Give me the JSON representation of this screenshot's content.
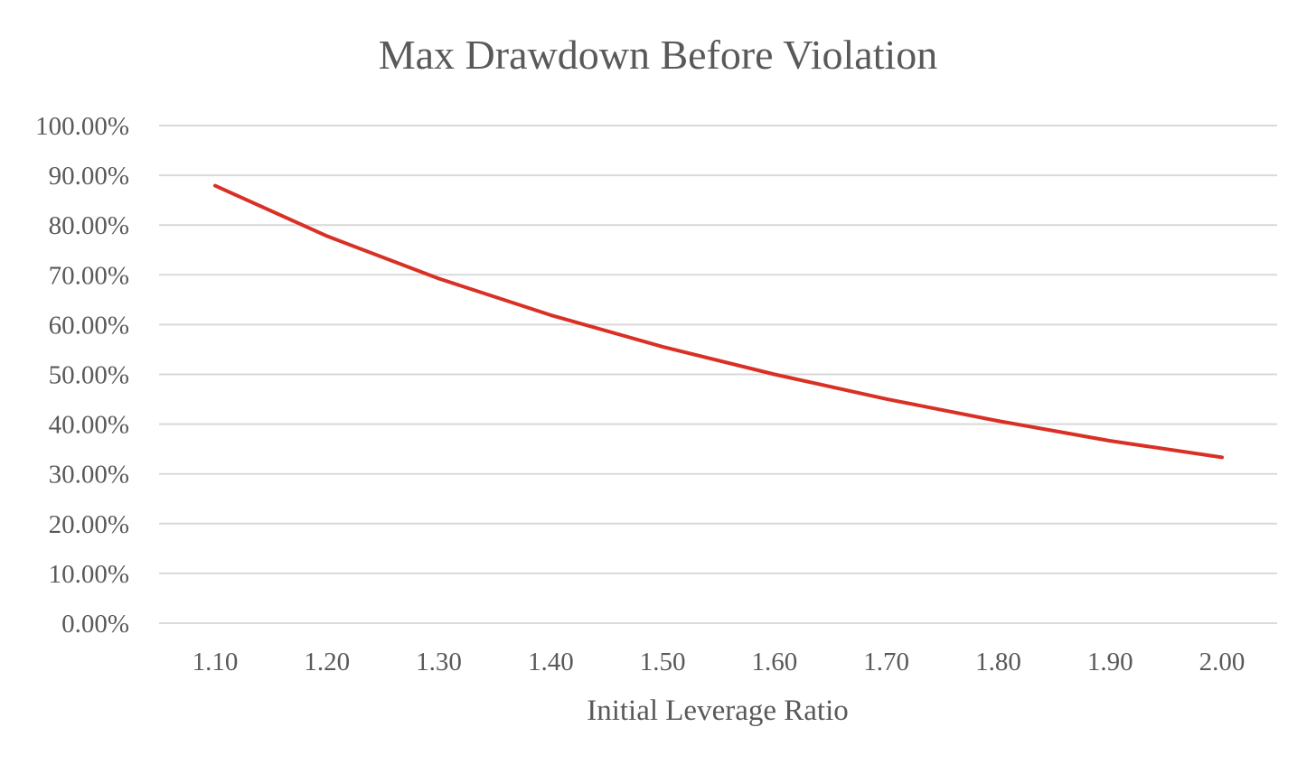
{
  "chart_data": {
    "type": "line",
    "title": "Max Drawdown Before Violation",
    "xlabel": "Initial Leverage Ratio",
    "ylabel": "",
    "categories": [
      "1.10",
      "1.20",
      "1.30",
      "1.40",
      "1.50",
      "1.60",
      "1.70",
      "1.80",
      "1.90",
      "2.00"
    ],
    "yticks": [
      "0.00%",
      "10.00%",
      "20.00%",
      "30.00%",
      "40.00%",
      "50.00%",
      "60.00%",
      "70.00%",
      "80.00%",
      "90.00%",
      "100.00%"
    ],
    "ylim": [
      0,
      1
    ],
    "grid": true,
    "legend": "none",
    "series": [
      {
        "values": [
          0.8791,
          0.7778,
          0.6923,
          0.619,
          0.5556,
          0.5,
          0.4505,
          0.4063,
          0.3665,
          0.3333
        ],
        "color": "#d93025"
      }
    ]
  }
}
